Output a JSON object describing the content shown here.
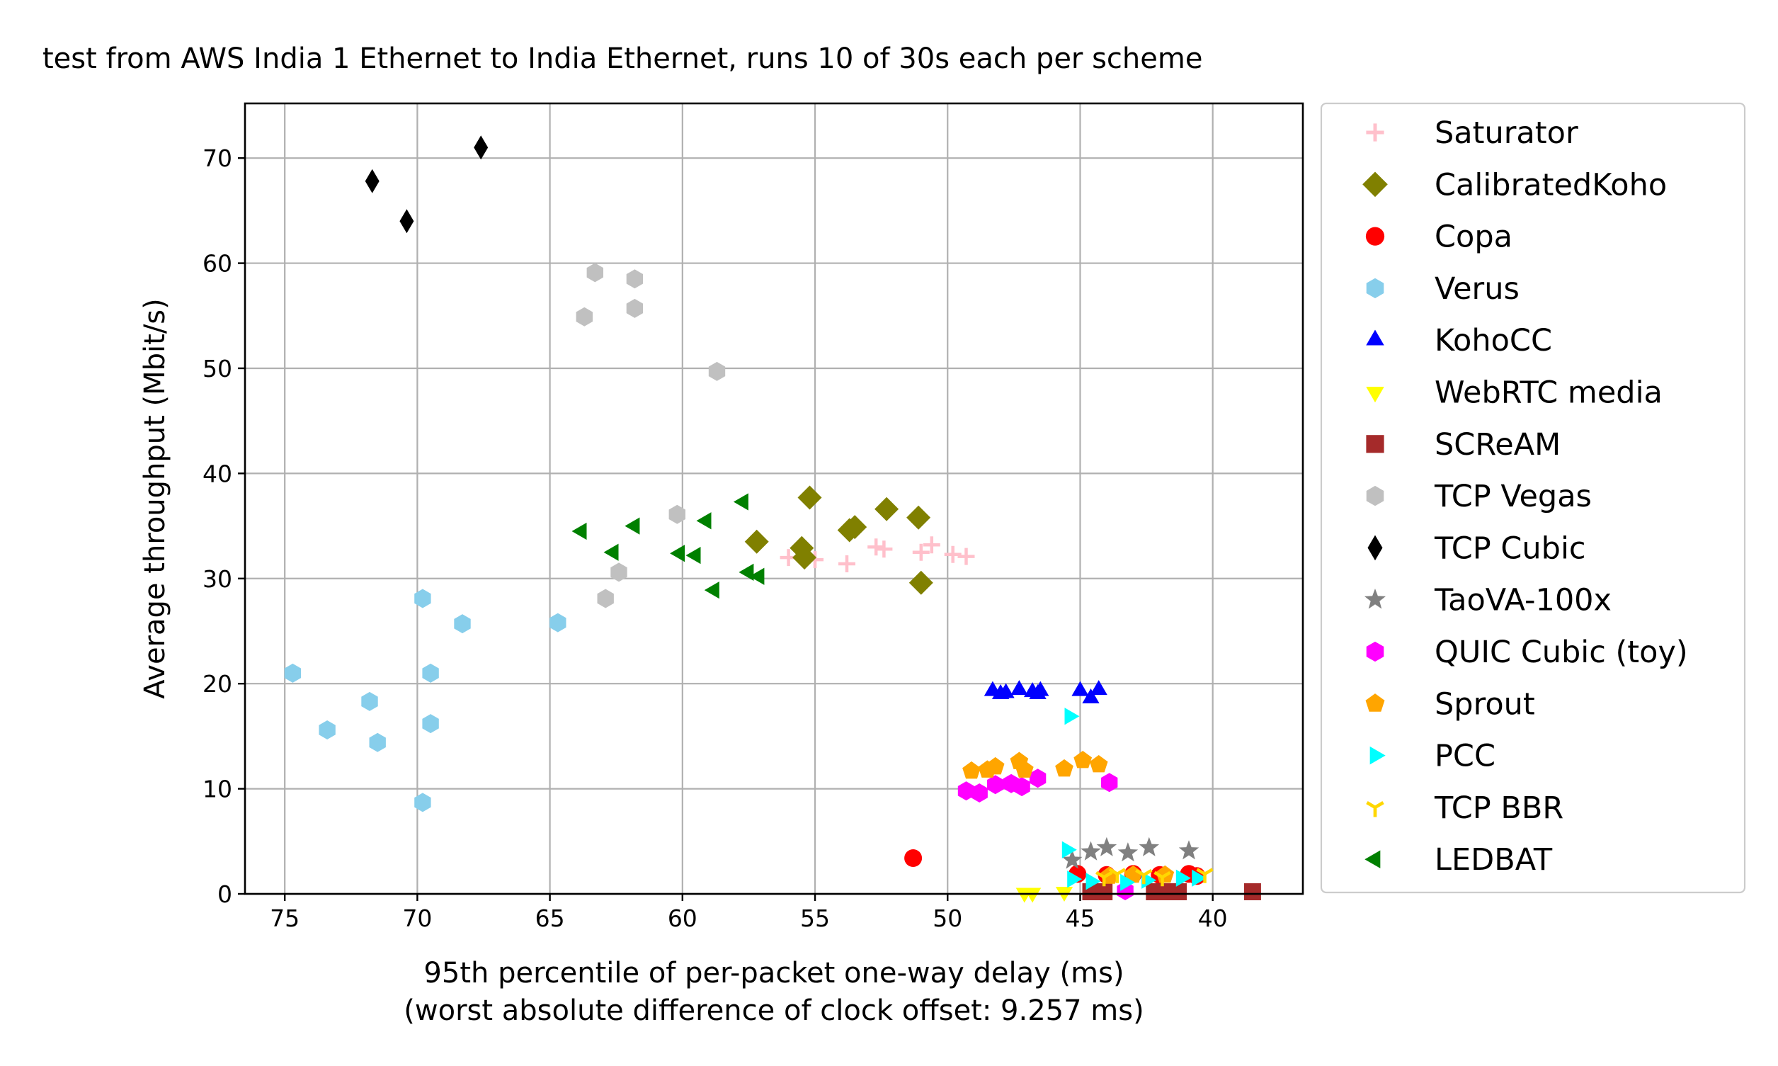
{
  "chart_data": {
    "type": "scatter",
    "title": "test from AWS India 1 Ethernet to India Ethernet, runs 10 of 30s each per scheme",
    "xlabel": "95th percentile of per-packet one-way delay (ms)",
    "xlabel2": "(worst absolute difference of clock offset: 9.257 ms)",
    "ylabel": "Average throughput (Mbit/s)",
    "xlim": [
      76.5,
      36.6
    ],
    "ylim": [
      0,
      75.2
    ],
    "x_inverted": true,
    "grid": true,
    "legend_position": "outside-right",
    "xticks": [
      75,
      70,
      65,
      60,
      55,
      50,
      45,
      40
    ],
    "yticks": [
      0,
      10,
      20,
      30,
      40,
      50,
      60,
      70
    ],
    "series": [
      {
        "name": "Saturator",
        "marker": "plus",
        "color": "#ffc0cb",
        "points": [
          [
            56.0,
            32.0
          ],
          [
            55.0,
            31.8
          ],
          [
            53.8,
            31.4
          ],
          [
            52.7,
            33.0
          ],
          [
            52.4,
            32.8
          ],
          [
            51.0,
            32.5
          ],
          [
            50.6,
            33.2
          ],
          [
            49.8,
            32.3
          ],
          [
            49.3,
            32.1
          ]
        ]
      },
      {
        "name": "CalibratedKoho",
        "marker": "diamond",
        "color": "#808000",
        "points": [
          [
            55.2,
            37.7
          ],
          [
            52.3,
            36.6
          ],
          [
            51.1,
            35.8
          ],
          [
            53.7,
            34.6
          ],
          [
            53.5,
            34.9
          ],
          [
            57.2,
            33.5
          ],
          [
            55.5,
            32.9
          ],
          [
            55.4,
            32.0
          ],
          [
            51.0,
            29.6
          ]
        ]
      },
      {
        "name": "Copa",
        "marker": "circle",
        "color": "#ff0000",
        "points": [
          [
            51.3,
            3.4
          ],
          [
            45.1,
            1.9
          ],
          [
            44.0,
            1.8
          ],
          [
            43.0,
            1.9
          ],
          [
            42.0,
            1.8
          ],
          [
            40.9,
            1.9
          ],
          [
            40.6,
            1.7
          ]
        ]
      },
      {
        "name": "Verus",
        "marker": "hexagon",
        "color": "#87ceeb",
        "points": [
          [
            74.7,
            21.0
          ],
          [
            73.4,
            15.6
          ],
          [
            71.8,
            18.3
          ],
          [
            71.5,
            14.4
          ],
          [
            69.8,
            28.1
          ],
          [
            69.8,
            8.7
          ],
          [
            69.5,
            21.0
          ],
          [
            69.5,
            16.2
          ],
          [
            68.3,
            25.7
          ],
          [
            64.7,
            25.8
          ]
        ]
      },
      {
        "name": "KohoCC",
        "marker": "triangle-up",
        "color": "#0000ff",
        "points": [
          [
            48.3,
            19.3
          ],
          [
            48.0,
            19.0
          ],
          [
            47.8,
            19.1
          ],
          [
            47.3,
            19.4
          ],
          [
            46.8,
            19.2
          ],
          [
            46.6,
            19.0
          ],
          [
            45.0,
            19.3
          ],
          [
            44.6,
            18.6
          ],
          [
            44.3,
            19.4
          ],
          [
            46.5,
            19.3
          ]
        ]
      },
      {
        "name": "WebRTC media",
        "marker": "triangle-down",
        "color": "#ffff00",
        "points": [
          [
            47.1,
            0.1
          ],
          [
            46.8,
            0.1
          ],
          [
            45.6,
            0.2
          ]
        ]
      },
      {
        "name": "SCReAM",
        "marker": "square",
        "color": "#a52a2a",
        "points": [
          [
            44.6,
            0.2
          ],
          [
            44.1,
            0.2
          ],
          [
            42.2,
            0.2
          ],
          [
            41.8,
            0.2
          ],
          [
            41.3,
            0.2
          ],
          [
            38.5,
            0.2
          ]
        ]
      },
      {
        "name": "TCP Vegas",
        "marker": "hexagon",
        "color": "#c0c0c0",
        "points": [
          [
            63.3,
            59.1
          ],
          [
            61.8,
            58.5
          ],
          [
            61.8,
            55.7
          ],
          [
            63.7,
            54.9
          ],
          [
            58.7,
            49.7
          ],
          [
            60.2,
            36.1
          ],
          [
            62.4,
            30.6
          ],
          [
            62.9,
            28.1
          ]
        ]
      },
      {
        "name": "TCP Cubic",
        "marker": "thin-diamond",
        "color": "#000000",
        "points": [
          [
            67.6,
            71.0
          ],
          [
            71.7,
            67.8
          ],
          [
            70.4,
            64.0
          ]
        ]
      },
      {
        "name": "TaoVA-100x",
        "marker": "star",
        "color": "#808080",
        "points": [
          [
            45.3,
            3.2
          ],
          [
            44.6,
            4.0
          ],
          [
            44.0,
            4.4
          ],
          [
            43.2,
            3.9
          ],
          [
            42.4,
            4.4
          ],
          [
            40.9,
            4.1
          ]
        ]
      },
      {
        "name": "QUIC Cubic (toy)",
        "marker": "hexagon",
        "color": "#ff00ff",
        "points": [
          [
            49.3,
            9.8
          ],
          [
            48.8,
            9.6
          ],
          [
            48.2,
            10.4
          ],
          [
            47.6,
            10.5
          ],
          [
            47.2,
            10.2
          ],
          [
            46.6,
            11.0
          ],
          [
            43.9,
            10.6
          ],
          [
            43.3,
            0.3
          ]
        ]
      },
      {
        "name": "Sprout",
        "marker": "pentagon",
        "color": "#ffa500",
        "points": [
          [
            49.1,
            11.7
          ],
          [
            48.5,
            11.8
          ],
          [
            48.2,
            12.1
          ],
          [
            47.3,
            12.6
          ],
          [
            47.1,
            11.8
          ],
          [
            45.6,
            11.9
          ],
          [
            44.9,
            12.7
          ],
          [
            44.3,
            12.3
          ],
          [
            43.9,
            1.7
          ],
          [
            43.0,
            1.8
          ],
          [
            41.8,
            1.8
          ]
        ]
      },
      {
        "name": "PCC",
        "marker": "triangle-right",
        "color": "#00ffff",
        "points": [
          [
            45.4,
            16.9
          ],
          [
            45.5,
            4.2
          ],
          [
            45.3,
            1.4
          ],
          [
            44.6,
            1.2
          ],
          [
            43.3,
            1.1
          ],
          [
            42.5,
            1.3
          ],
          [
            41.2,
            1.5
          ],
          [
            40.6,
            1.5
          ]
        ]
      },
      {
        "name": "TCP BBR",
        "marker": "tri-down",
        "color": "#ffd700",
        "points": [
          [
            44.1,
            1.6
          ],
          [
            43.6,
            1.9
          ],
          [
            42.6,
            1.8
          ],
          [
            41.9,
            1.6
          ],
          [
            40.3,
            1.9
          ]
        ]
      },
      {
        "name": "LEDBAT",
        "marker": "triangle-left",
        "color": "#008000",
        "points": [
          [
            57.7,
            37.3
          ],
          [
            59.1,
            35.5
          ],
          [
            61.8,
            35.0
          ],
          [
            63.8,
            34.5
          ],
          [
            62.6,
            32.5
          ],
          [
            60.1,
            32.4
          ],
          [
            59.5,
            32.2
          ],
          [
            57.5,
            30.6
          ],
          [
            57.1,
            30.2
          ],
          [
            58.8,
            28.9
          ]
        ]
      }
    ]
  }
}
